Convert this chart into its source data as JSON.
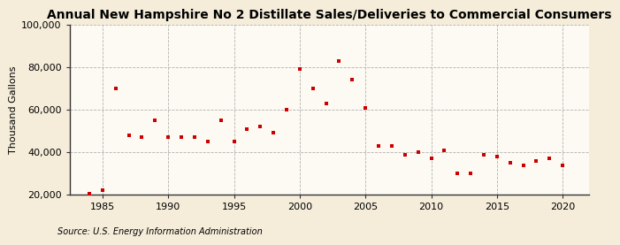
{
  "title": "Annual New Hampshire No 2 Distillate Sales/Deliveries to Commercial Consumers",
  "ylabel": "Thousand Gallons",
  "source": "Source: U.S. Energy Information Administration",
  "fig_background_color": "#F5EDDA",
  "plot_background_color": "#FDFAF3",
  "marker_color": "#CC0000",
  "years": [
    1984,
    1985,
    1986,
    1987,
    1988,
    1989,
    1990,
    1991,
    1992,
    1993,
    1994,
    1995,
    1996,
    1997,
    1998,
    1999,
    2000,
    2001,
    2002,
    2003,
    2004,
    2005,
    2006,
    2007,
    2008,
    2009,
    2010,
    2011,
    2012,
    2013,
    2014,
    2015,
    2016,
    2017,
    2018,
    2019,
    2020
  ],
  "values": [
    20500,
    22000,
    70000,
    48000,
    47000,
    55000,
    47000,
    47000,
    47000,
    45000,
    55000,
    45000,
    51000,
    52000,
    49000,
    60000,
    79000,
    70000,
    63000,
    83000,
    74000,
    61000,
    43000,
    43000,
    39000,
    40000,
    37000,
    41000,
    30000,
    30000,
    39000,
    38000,
    35000,
    34000,
    36000,
    37000,
    34000
  ],
  "ylim": [
    20000,
    100000
  ],
  "xlim": [
    1982.5,
    2022
  ],
  "yticks": [
    20000,
    40000,
    60000,
    80000,
    100000
  ],
  "xticks": [
    1985,
    1990,
    1995,
    2000,
    2005,
    2010,
    2015,
    2020
  ],
  "grid_color": "#AAAAAA",
  "spine_color": "#333333",
  "title_fontsize": 10,
  "label_fontsize": 8,
  "tick_fontsize": 8,
  "source_fontsize": 7
}
